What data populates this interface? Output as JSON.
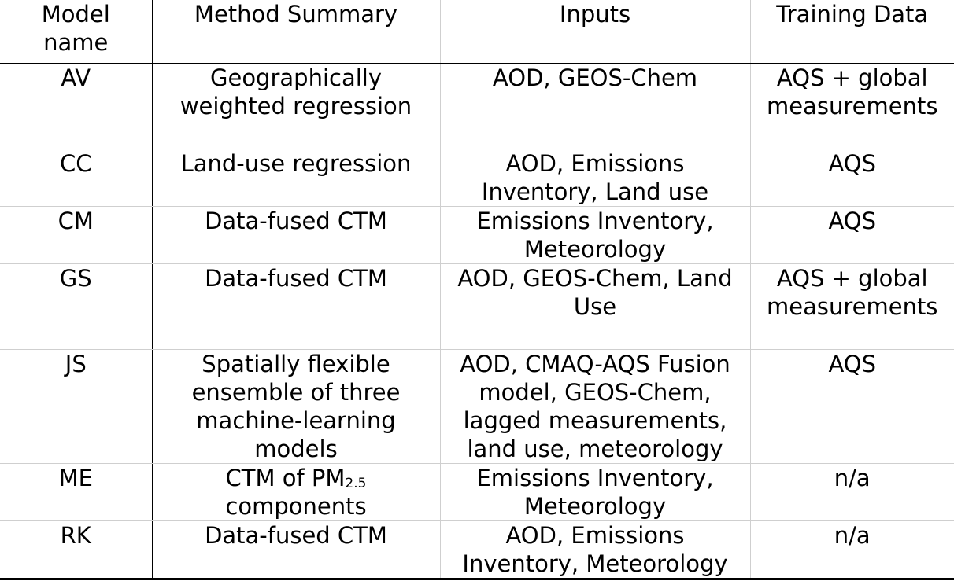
{
  "table": {
    "headers": {
      "model": "Model name",
      "method": "Method Summary",
      "inputs": "Inputs",
      "training": "Training Data"
    },
    "rows": [
      {
        "model": "AV",
        "method": "Geographically weighted regression",
        "inputs": "AOD, GEOS-Chem",
        "training": "AQS + global measurements"
      },
      {
        "model": "CC",
        "method": "Land-use regression",
        "inputs": "AOD, Emissions Inventory, Land use",
        "training": "AQS"
      },
      {
        "model": "CM",
        "method": "Data-fused CTM",
        "inputs": "Emissions Inventory, Meteorology",
        "training": "AQS"
      },
      {
        "model": "GS",
        "method": "Data-fused CTM",
        "inputs": "AOD, GEOS-Chem, Land Use",
        "training": "AQS + global measurements"
      },
      {
        "model": "JS",
        "method": "Spatially flexible ensemble of three machine-learning models",
        "inputs": "AOD, CMAQ-AQS Fusion model, GEOS-Chem, lagged measurements, land use, meteorology",
        "training": "AQS"
      },
      {
        "model": "ME",
        "method_prefix": "CTM of PM",
        "method_sub": "2.5",
        "method_suffix": "components",
        "inputs": "Emissions Inventory, Meteorology",
        "training": "n/a"
      },
      {
        "model": "RK",
        "method": "Data-fused CTM",
        "inputs": "AOD, Emissions Inventory, Meteorology",
        "training": "n/a"
      }
    ]
  }
}
